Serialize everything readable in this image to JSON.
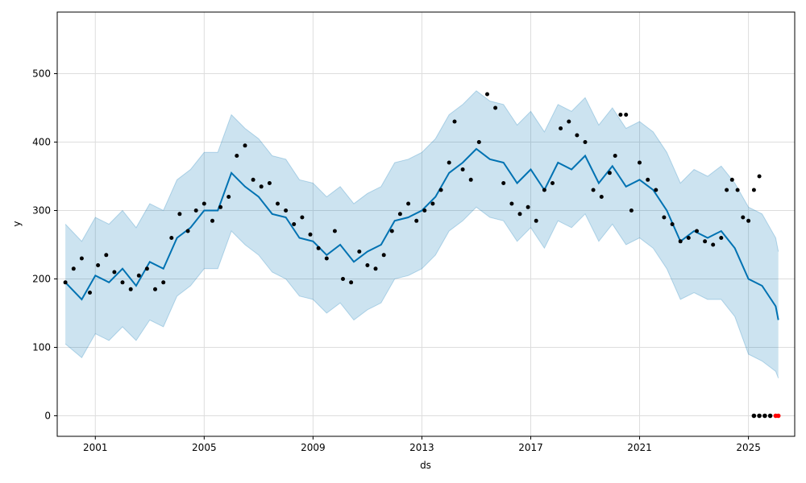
{
  "chart_data": {
    "type": "line",
    "xlabel": "ds",
    "ylabel": "y",
    "xlim": [
      1999.6,
      2026.7
    ],
    "ylim": [
      -30,
      590
    ],
    "grid": true,
    "x_ticks": [
      2001,
      2005,
      2009,
      2013,
      2017,
      2021,
      2025
    ],
    "x_tick_labels": [
      "2001",
      "2005",
      "2009",
      "2013",
      "2017",
      "2021",
      "2025"
    ],
    "y_ticks": [
      0,
      100,
      200,
      300,
      400,
      500
    ],
    "y_tick_labels": [
      "0",
      "100",
      "200",
      "300",
      "400",
      "500"
    ],
    "colors": {
      "forecast_line": "#0072B2",
      "uncertainty_band": "#0072B2",
      "observed_points": "#000000",
      "highlighted_points": "#FF0000",
      "grid": "#dddddd"
    },
    "forecast": {
      "x": [
        1999.9,
        2000.5,
        2001.0,
        2001.5,
        2002.0,
        2002.5,
        2003.0,
        2003.5,
        2004.0,
        2004.5,
        2005.0,
        2005.5,
        2006.0,
        2006.5,
        2007.0,
        2007.5,
        2008.0,
        2008.5,
        2009.0,
        2009.5,
        2010.0,
        2010.5,
        2011.0,
        2011.5,
        2012.0,
        2012.5,
        2013.0,
        2013.5,
        2014.0,
        2014.5,
        2015.0,
        2015.5,
        2016.0,
        2016.5,
        2017.0,
        2017.5,
        2018.0,
        2018.5,
        2019.0,
        2019.5,
        2020.0,
        2020.5,
        2021.0,
        2021.5,
        2022.0,
        2022.5,
        2023.0,
        2023.5,
        2024.0,
        2024.5,
        2025.0,
        2025.5,
        2026.0,
        2026.1
      ],
      "yhat": [
        195,
        170,
        205,
        195,
        215,
        190,
        225,
        215,
        260,
        275,
        300,
        300,
        355,
        335,
        320,
        295,
        290,
        260,
        255,
        235,
        250,
        225,
        240,
        250,
        285,
        290,
        300,
        320,
        355,
        370,
        390,
        375,
        370,
        340,
        360,
        330,
        370,
        360,
        380,
        340,
        365,
        335,
        345,
        330,
        300,
        255,
        270,
        260,
        270,
        245,
        200,
        190,
        160,
        140
      ],
      "yhat_lower": [
        105,
        85,
        120,
        110,
        130,
        110,
        140,
        130,
        175,
        190,
        215,
        215,
        270,
        250,
        235,
        210,
        200,
        175,
        170,
        150,
        165,
        140,
        155,
        165,
        200,
        205,
        215,
        235,
        270,
        285,
        305,
        290,
        285,
        255,
        275,
        245,
        285,
        275,
        295,
        255,
        280,
        250,
        260,
        245,
        215,
        170,
        180,
        170,
        170,
        145,
        90,
        80,
        65,
        55
      ],
      "yhat_upper": [
        280,
        255,
        290,
        280,
        300,
        275,
        310,
        300,
        345,
        360,
        385,
        385,
        440,
        420,
        405,
        380,
        375,
        345,
        340,
        320,
        335,
        310,
        325,
        335,
        370,
        375,
        385,
        405,
        440,
        455,
        475,
        460,
        455,
        425,
        445,
        415,
        455,
        445,
        465,
        425,
        450,
        420,
        430,
        415,
        385,
        340,
        360,
        350,
        365,
        340,
        305,
        295,
        260,
        240
      ]
    },
    "observed": {
      "x": [
        1999.9,
        2000.2,
        2000.5,
        2000.8,
        2001.1,
        2001.4,
        2001.7,
        2002.0,
        2002.3,
        2002.6,
        2002.9,
        2003.2,
        2003.5,
        2003.8,
        2004.1,
        2004.4,
        2004.7,
        2005.0,
        2005.3,
        2005.6,
        2005.9,
        2006.2,
        2006.5,
        2006.8,
        2007.1,
        2007.4,
        2007.7,
        2008.0,
        2008.3,
        2008.6,
        2008.9,
        2009.2,
        2009.5,
        2009.8,
        2010.1,
        2010.4,
        2010.7,
        2011.0,
        2011.3,
        2011.6,
        2011.9,
        2012.2,
        2012.5,
        2012.8,
        2013.1,
        2013.4,
        2013.7,
        2014.0,
        2014.2,
        2014.5,
        2014.8,
        2015.1,
        2015.4,
        2015.7,
        2016.0,
        2016.3,
        2016.6,
        2016.9,
        2017.2,
        2017.5,
        2017.8,
        2018.1,
        2018.4,
        2018.7,
        2019.0,
        2019.3,
        2019.6,
        2019.9,
        2020.1,
        2020.3,
        2020.5,
        2020.7,
        2021.0,
        2021.3,
        2021.6,
        2021.9,
        2022.2,
        2022.5,
        2022.8,
        2023.1,
        2023.4,
        2023.7,
        2024.0,
        2024.2,
        2024.4,
        2024.6,
        2024.8,
        2025.0,
        2025.2,
        2025.4
      ],
      "y": [
        195,
        215,
        230,
        180,
        220,
        235,
        210,
        195,
        185,
        205,
        215,
        185,
        195,
        260,
        295,
        270,
        300,
        310,
        285,
        305,
        320,
        380,
        395,
        345,
        335,
        340,
        310,
        300,
        280,
        290,
        265,
        245,
        230,
        270,
        200,
        195,
        240,
        220,
        215,
        235,
        270,
        295,
        310,
        285,
        300,
        310,
        330,
        370,
        430,
        360,
        345,
        400,
        470,
        450,
        340,
        310,
        295,
        305,
        285,
        330,
        340,
        420,
        430,
        410,
        400,
        330,
        320,
        355,
        380,
        440,
        440,
        300,
        370,
        345,
        330,
        290,
        280,
        255,
        260,
        270,
        255,
        250,
        260,
        330,
        345,
        330,
        290,
        285,
        330,
        350
      ]
    },
    "highlighted": {
      "x": [
        2025.2,
        2025.4,
        2025.6,
        2025.8,
        2026.0,
        2026.1
      ],
      "y": [
        0,
        0,
        0,
        0,
        0,
        0
      ]
    }
  }
}
